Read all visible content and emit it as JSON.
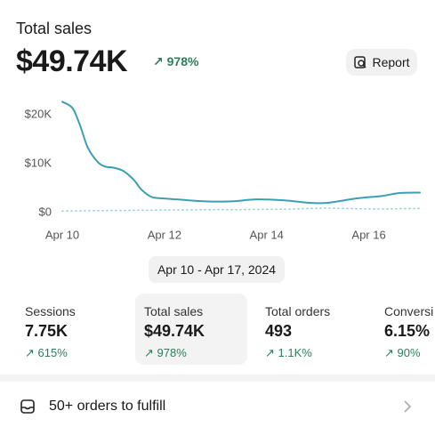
{
  "header": {
    "title": "Total sales",
    "value": "$49.74K",
    "change": "978%",
    "button": "Report"
  },
  "chart_data": {
    "type": "line",
    "x": [
      10,
      10.2,
      10.35,
      10.5,
      10.7,
      10.85,
      11,
      11.2,
      11.4,
      11.55,
      11.75,
      12,
      12.25,
      12.8,
      13.3,
      13.8,
      14.35,
      14.85,
      15.2,
      15.75,
      16.25,
      16.6,
      17
    ],
    "series": [
      {
        "color": "#3a9fb4",
        "style": "solid",
        "values": [
          22700,
          21400,
          17800,
          13300,
          10300,
          9400,
          9200,
          8500,
          6700,
          4700,
          3200,
          2900,
          2700,
          2300,
          2300,
          2700,
          2500,
          2000,
          2000,
          2900,
          3400,
          4000,
          4100
        ]
      },
      {
        "color": "#8fcfdb",
        "style": "dotted",
        "values": [
          300,
          350,
          350,
          400,
          400,
          420,
          450,
          450,
          480,
          500,
          500,
          520,
          550,
          600,
          600,
          650,
          700,
          850,
          900,
          800,
          750,
          800,
          850
        ]
      }
    ],
    "xlim": [
      10,
      17
    ],
    "xticks": [
      {
        "value": 10,
        "label": "Apr 10"
      },
      {
        "value": 12,
        "label": "Apr 12"
      },
      {
        "value": 14,
        "label": "Apr 14"
      },
      {
        "value": 16,
        "label": "Apr 16"
      }
    ],
    "ylim": [
      0,
      23500
    ],
    "yticks": [
      {
        "value": 0,
        "label": "$0"
      },
      {
        "value": 10000,
        "label": "$10K"
      },
      {
        "value": 20000,
        "label": "$20K"
      }
    ]
  },
  "date_range": "Apr 10 - Apr 17, 2024",
  "metrics": [
    {
      "label": "Sessions",
      "value": "7.75K",
      "change": "615%"
    },
    {
      "label": "Total sales",
      "value": "$49.74K",
      "change": "978%"
    },
    {
      "label": "Total orders",
      "value": "493",
      "change": "1.1K%"
    },
    {
      "label": "Conversi",
      "value": "6.15%",
      "change": "90%"
    }
  ],
  "footer": {
    "text": "50+ orders to fulfill"
  }
}
